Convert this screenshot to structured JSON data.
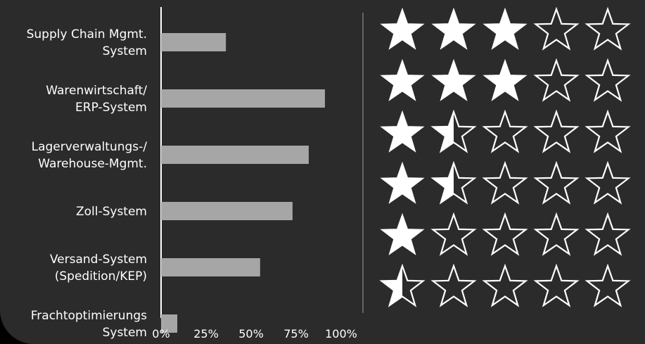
{
  "chart_data": {
    "type": "bar",
    "orientation": "horizontal",
    "categories": [
      [
        "Supply Chain Mgmt.",
        "System"
      ],
      [
        "Warenwirtschaft/",
        "ERP-System"
      ],
      [
        "Lagerverwaltungs-/",
        "Warehouse-Mgmt."
      ],
      [
        "Zoll-System"
      ],
      [
        "Versand-System",
        "(Spedition/KEP)"
      ],
      [
        "Frachtoptimierungs",
        "System"
      ]
    ],
    "values": [
      36,
      91,
      82,
      73,
      55,
      9
    ],
    "xlim": [
      0,
      100
    ],
    "xticks": [
      "0%",
      "25%",
      "50%",
      "75%",
      "100%"
    ],
    "ratings": [
      3,
      3,
      1.5,
      1.5,
      1,
      0.5
    ],
    "rating_max": 5,
    "grid": false
  },
  "colors": {
    "panel": "#2b2b2b",
    "background": "#000000",
    "bar": "#a6a6a6",
    "axis": "#ffffff",
    "text": "#ffffff",
    "star_fill": "#ffffff",
    "star_outline": "#ffffff"
  }
}
